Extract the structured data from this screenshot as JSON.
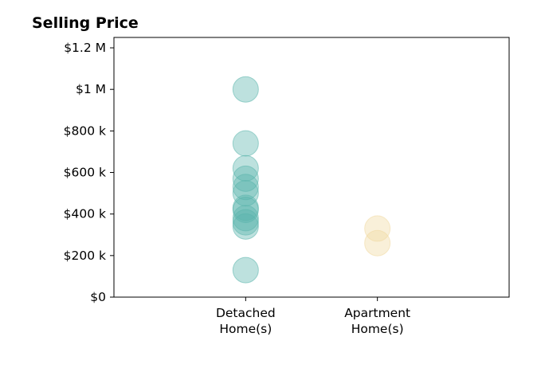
{
  "chart_data": {
    "type": "scatter",
    "title": "Selling Price",
    "xlabel": "",
    "ylabel": "",
    "categories": [
      {
        "label_lines": [
          "Detached",
          "Home(s)"
        ],
        "color": "#5ab4ac"
      },
      {
        "label_lines": [
          "Apartment",
          "Home(s)"
        ],
        "color": "#f1d9a0"
      }
    ],
    "series": [
      {
        "category": 0,
        "values": [
          1000000,
          740000,
          620000,
          570000,
          530000,
          500000,
          430000,
          420000,
          380000,
          360000,
          340000,
          130000
        ]
      },
      {
        "category": 1,
        "values": [
          330000,
          260000
        ]
      }
    ],
    "ylim": [
      0,
      1250000
    ],
    "yticks": [
      0,
      200000,
      400000,
      600000,
      800000,
      1000000,
      1200000
    ],
    "ytick_labels": [
      "$0",
      "$200 k",
      "$400 k",
      "$600 k",
      "$800 k",
      "$1 M",
      "$1.2 M"
    ],
    "xlim": [
      -1,
      2
    ],
    "marker_alpha": 0.4,
    "grid": false,
    "legend": "none"
  }
}
